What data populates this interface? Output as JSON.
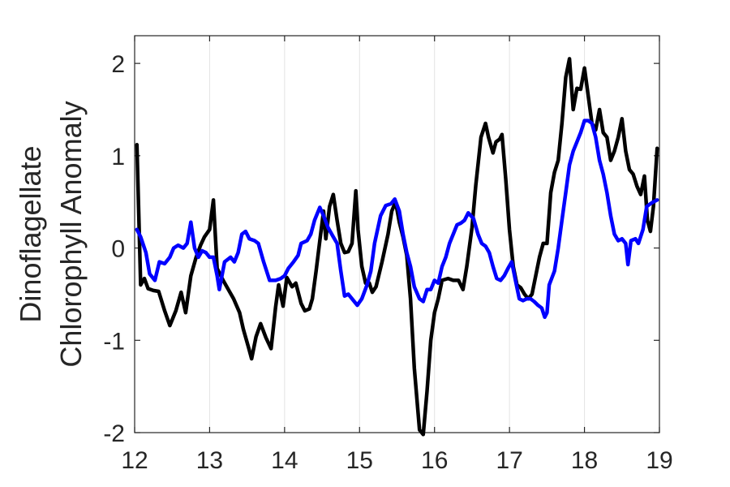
{
  "chart_data": {
    "type": "line",
    "title": "",
    "xlabel": "",
    "ylabel_lines": [
      "Dinoflagellate",
      "Chlorophyll Anomaly"
    ],
    "xlim": [
      12,
      19
    ],
    "ylim": [
      -2,
      2.3
    ],
    "xticks": [
      12,
      13,
      14,
      15,
      16,
      17,
      18,
      19
    ],
    "xtick_labels": [
      "12",
      "13",
      "14",
      "15",
      "16",
      "17",
      "18",
      "19"
    ],
    "yticks": [
      -2,
      -1,
      0,
      1,
      2
    ],
    "ytick_labels": [
      "-2",
      "-1",
      "0",
      "1",
      "2"
    ],
    "grid": "x-major",
    "legend": "none",
    "series": [
      {
        "color": "#000000",
        "points": [
          [
            12.03,
            1.12
          ],
          [
            12.08,
            -0.4
          ],
          [
            12.13,
            -0.33
          ],
          [
            12.18,
            -0.44
          ],
          [
            12.25,
            -0.46
          ],
          [
            12.32,
            -0.47
          ],
          [
            12.4,
            -0.68
          ],
          [
            12.47,
            -0.84
          ],
          [
            12.55,
            -0.68
          ],
          [
            12.62,
            -0.48
          ],
          [
            12.68,
            -0.7
          ],
          [
            12.75,
            -0.3
          ],
          [
            12.82,
            -0.1
          ],
          [
            12.88,
            0.03
          ],
          [
            12.93,
            0.12
          ],
          [
            13.0,
            0.2
          ],
          [
            13.05,
            0.52
          ],
          [
            13.1,
            -0.22
          ],
          [
            13.18,
            -0.35
          ],
          [
            13.25,
            -0.45
          ],
          [
            13.32,
            -0.55
          ],
          [
            13.4,
            -0.7
          ],
          [
            13.45,
            -0.88
          ],
          [
            13.52,
            -1.08
          ],
          [
            13.56,
            -1.2
          ],
          [
            13.62,
            -0.96
          ],
          [
            13.68,
            -0.82
          ],
          [
            13.75,
            -0.97
          ],
          [
            13.82,
            -1.09
          ],
          [
            13.88,
            -0.64
          ],
          [
            13.92,
            -0.4
          ],
          [
            13.98,
            -0.63
          ],
          [
            14.03,
            -0.32
          ],
          [
            14.1,
            -0.42
          ],
          [
            14.15,
            -0.38
          ],
          [
            14.22,
            -0.6
          ],
          [
            14.27,
            -0.68
          ],
          [
            14.33,
            -0.66
          ],
          [
            14.37,
            -0.55
          ],
          [
            14.42,
            -0.25
          ],
          [
            14.47,
            0.08
          ],
          [
            14.52,
            0.4
          ],
          [
            14.55,
            0.1
          ],
          [
            14.6,
            0.45
          ],
          [
            14.65,
            0.58
          ],
          [
            14.7,
            0.3
          ],
          [
            14.75,
            0.05
          ],
          [
            14.8,
            -0.05
          ],
          [
            14.85,
            -0.04
          ],
          [
            14.9,
            0.05
          ],
          [
            14.95,
            0.62
          ],
          [
            14.98,
            0.2
          ],
          [
            15.03,
            -0.2
          ],
          [
            15.08,
            -0.38
          ],
          [
            15.13,
            -0.38
          ],
          [
            15.17,
            -0.48
          ],
          [
            15.22,
            -0.42
          ],
          [
            15.3,
            -0.15
          ],
          [
            15.38,
            0.15
          ],
          [
            15.43,
            0.4
          ],
          [
            15.48,
            0.5
          ],
          [
            15.53,
            0.28
          ],
          [
            15.58,
            0.12
          ],
          [
            15.63,
            -0.08
          ],
          [
            15.68,
            -0.55
          ],
          [
            15.73,
            -1.3
          ],
          [
            15.8,
            -1.97
          ],
          [
            15.85,
            -2.02
          ],
          [
            15.9,
            -1.55
          ],
          [
            15.95,
            -1.0
          ],
          [
            16.0,
            -0.7
          ],
          [
            16.05,
            -0.55
          ],
          [
            16.1,
            -0.35
          ],
          [
            16.18,
            -0.33
          ],
          [
            16.25,
            -0.35
          ],
          [
            16.32,
            -0.35
          ],
          [
            16.38,
            -0.45
          ],
          [
            16.43,
            -0.2
          ],
          [
            16.5,
            0.22
          ],
          [
            16.55,
            0.68
          ],
          [
            16.62,
            1.2
          ],
          [
            16.68,
            1.35
          ],
          [
            16.72,
            1.2
          ],
          [
            16.78,
            1.03
          ],
          [
            16.82,
            1.15
          ],
          [
            16.87,
            1.18
          ],
          [
            16.9,
            1.23
          ],
          [
            16.95,
            0.75
          ],
          [
            17.0,
            0.2
          ],
          [
            17.05,
            -0.2
          ],
          [
            17.1,
            -0.4
          ],
          [
            17.15,
            -0.43
          ],
          [
            17.2,
            -0.5
          ],
          [
            17.25,
            -0.55
          ],
          [
            17.3,
            -0.5
          ],
          [
            17.35,
            -0.3
          ],
          [
            17.4,
            -0.1
          ],
          [
            17.45,
            0.05
          ],
          [
            17.5,
            0.05
          ],
          [
            17.55,
            0.6
          ],
          [
            17.6,
            0.82
          ],
          [
            17.65,
            0.95
          ],
          [
            17.7,
            1.35
          ],
          [
            17.75,
            1.85
          ],
          [
            17.8,
            2.05
          ],
          [
            17.85,
            1.5
          ],
          [
            17.9,
            1.73
          ],
          [
            17.95,
            1.72
          ],
          [
            18.0,
            1.95
          ],
          [
            18.05,
            1.65
          ],
          [
            18.1,
            1.35
          ],
          [
            18.15,
            1.28
          ],
          [
            18.2,
            1.5
          ],
          [
            18.25,
            1.25
          ],
          [
            18.3,
            1.2
          ],
          [
            18.35,
            0.95
          ],
          [
            18.4,
            1.05
          ],
          [
            18.45,
            1.2
          ],
          [
            18.5,
            1.4
          ],
          [
            18.55,
            1.05
          ],
          [
            18.6,
            0.85
          ],
          [
            18.65,
            0.8
          ],
          [
            18.7,
            0.67
          ],
          [
            18.75,
            0.58
          ],
          [
            18.8,
            0.78
          ],
          [
            18.84,
            0.3
          ],
          [
            18.88,
            0.18
          ],
          [
            18.92,
            0.45
          ],
          [
            18.97,
            1.08
          ]
        ]
      },
      {
        "color": "#0000ff",
        "points": [
          [
            12.03,
            0.2
          ],
          [
            12.08,
            0.12
          ],
          [
            12.15,
            -0.05
          ],
          [
            12.2,
            -0.28
          ],
          [
            12.27,
            -0.35
          ],
          [
            12.33,
            -0.15
          ],
          [
            12.4,
            -0.17
          ],
          [
            12.47,
            -0.1
          ],
          [
            12.52,
            0.0
          ],
          [
            12.58,
            0.03
          ],
          [
            12.65,
            0.0
          ],
          [
            12.7,
            0.05
          ],
          [
            12.75,
            0.28
          ],
          [
            12.8,
            0.0
          ],
          [
            12.85,
            -0.1
          ],
          [
            12.9,
            -0.03
          ],
          [
            12.95,
            -0.05
          ],
          [
            13.0,
            -0.1
          ],
          [
            13.05,
            -0.1
          ],
          [
            13.1,
            -0.3
          ],
          [
            13.13,
            -0.45
          ],
          [
            13.2,
            -0.15
          ],
          [
            13.28,
            -0.1
          ],
          [
            13.33,
            -0.15
          ],
          [
            13.38,
            -0.05
          ],
          [
            13.43,
            0.15
          ],
          [
            13.48,
            0.18
          ],
          [
            13.53,
            0.1
          ],
          [
            13.6,
            0.08
          ],
          [
            13.65,
            0.05
          ],
          [
            13.72,
            -0.15
          ],
          [
            13.8,
            -0.35
          ],
          [
            13.88,
            -0.35
          ],
          [
            13.95,
            -0.33
          ],
          [
            14.0,
            -0.3
          ],
          [
            14.05,
            -0.22
          ],
          [
            14.12,
            -0.15
          ],
          [
            14.18,
            -0.08
          ],
          [
            14.22,
            0.05
          ],
          [
            14.3,
            0.08
          ],
          [
            14.35,
            0.15
          ],
          [
            14.4,
            0.3
          ],
          [
            14.47,
            0.44
          ],
          [
            14.52,
            0.35
          ],
          [
            14.58,
            0.22
          ],
          [
            14.65,
            0.12
          ],
          [
            14.7,
            0.05
          ],
          [
            14.75,
            -0.25
          ],
          [
            14.8,
            -0.52
          ],
          [
            14.85,
            -0.5
          ],
          [
            14.9,
            -0.55
          ],
          [
            14.97,
            -0.62
          ],
          [
            15.03,
            -0.55
          ],
          [
            15.1,
            -0.4
          ],
          [
            15.15,
            -0.25
          ],
          [
            15.2,
            0.05
          ],
          [
            15.28,
            0.35
          ],
          [
            15.35,
            0.46
          ],
          [
            15.42,
            0.48
          ],
          [
            15.47,
            0.53
          ],
          [
            15.53,
            0.4
          ],
          [
            15.58,
            0.15
          ],
          [
            15.63,
            -0.05
          ],
          [
            15.68,
            -0.2
          ],
          [
            15.73,
            -0.42
          ],
          [
            15.8,
            -0.55
          ],
          [
            15.85,
            -0.58
          ],
          [
            15.9,
            -0.45
          ],
          [
            15.95,
            -0.45
          ],
          [
            16.0,
            -0.35
          ],
          [
            16.05,
            -0.38
          ],
          [
            16.1,
            -0.2
          ],
          [
            16.15,
            -0.1
          ],
          [
            16.2,
            0.05
          ],
          [
            16.25,
            0.15
          ],
          [
            16.3,
            0.25
          ],
          [
            16.35,
            0.27
          ],
          [
            16.4,
            0.3
          ],
          [
            16.45,
            0.38
          ],
          [
            16.52,
            0.32
          ],
          [
            16.58,
            0.15
          ],
          [
            16.63,
            0.05
          ],
          [
            16.68,
            0.02
          ],
          [
            16.73,
            -0.05
          ],
          [
            16.78,
            -0.2
          ],
          [
            16.83,
            -0.33
          ],
          [
            16.88,
            -0.35
          ],
          [
            16.93,
            -0.3
          ],
          [
            16.98,
            -0.22
          ],
          [
            17.03,
            -0.15
          ],
          [
            17.08,
            -0.35
          ],
          [
            17.13,
            -0.55
          ],
          [
            17.18,
            -0.57
          ],
          [
            17.23,
            -0.55
          ],
          [
            17.28,
            -0.55
          ],
          [
            17.33,
            -0.58
          ],
          [
            17.38,
            -0.62
          ],
          [
            17.43,
            -0.65
          ],
          [
            17.47,
            -0.75
          ],
          [
            17.5,
            -0.7
          ],
          [
            17.53,
            -0.4
          ],
          [
            17.6,
            -0.25
          ],
          [
            17.65,
            0.0
          ],
          [
            17.7,
            0.3
          ],
          [
            17.75,
            0.6
          ],
          [
            17.8,
            0.9
          ],
          [
            17.85,
            1.05
          ],
          [
            17.9,
            1.15
          ],
          [
            17.95,
            1.25
          ],
          [
            18.0,
            1.38
          ],
          [
            18.05,
            1.38
          ],
          [
            18.1,
            1.35
          ],
          [
            18.15,
            1.2
          ],
          [
            18.2,
            0.95
          ],
          [
            18.25,
            0.8
          ],
          [
            18.3,
            0.6
          ],
          [
            18.35,
            0.35
          ],
          [
            18.4,
            0.15
          ],
          [
            18.45,
            0.08
          ],
          [
            18.5,
            0.1
          ],
          [
            18.55,
            0.05
          ],
          [
            18.58,
            -0.18
          ],
          [
            18.62,
            0.08
          ],
          [
            18.68,
            0.1
          ],
          [
            18.72,
            0.05
          ],
          [
            18.78,
            0.2
          ],
          [
            18.83,
            0.45
          ],
          [
            18.88,
            0.48
          ],
          [
            18.92,
            0.5
          ],
          [
            18.97,
            0.52
          ]
        ]
      }
    ]
  }
}
